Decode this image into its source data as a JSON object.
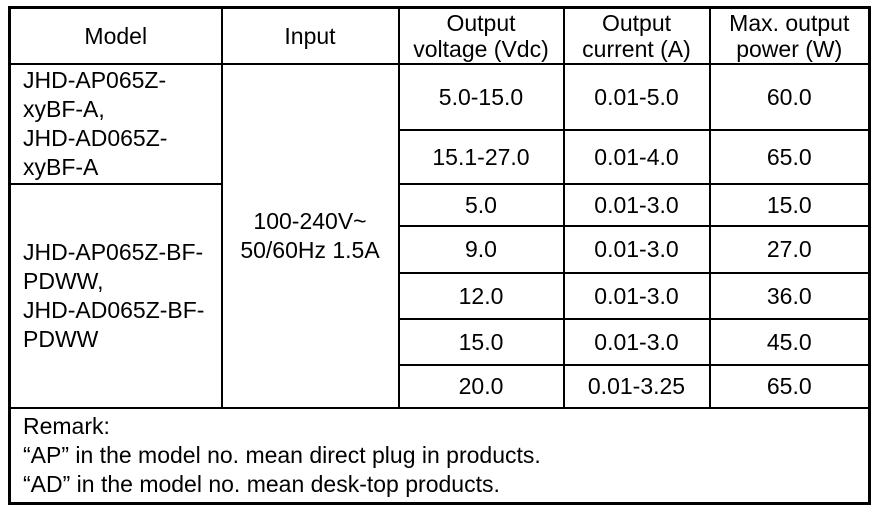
{
  "table": {
    "headers": {
      "model": "Model",
      "input": "Input",
      "output_voltage": {
        "line1": "Output",
        "line2": "voltage (Vdc)"
      },
      "output_current": {
        "line1": "Output",
        "line2": "current (A)"
      },
      "max_power": {
        "line1": "Max. output",
        "line2": "power (W)"
      }
    },
    "input_cell": {
      "line1": "100-240V~",
      "line2": "50/60Hz 1.5A"
    },
    "model_groups": [
      {
        "lines": [
          "JHD-AP065Z-",
          "xyBF-A,",
          "JHD-AD065Z-",
          "xyBF-A"
        ]
      },
      {
        "lines": [
          "JHD-AP065Z-BF-",
          "PDWW,",
          "JHD-AD065Z-BF-",
          "PDWW"
        ]
      }
    ],
    "rows": [
      {
        "voltage": "5.0-15.0",
        "current": "0.01-5.0",
        "power": "60.0"
      },
      {
        "voltage": "15.1-27.0",
        "current": "0.01-4.0",
        "power": "65.0"
      },
      {
        "voltage": "5.0",
        "current": "0.01-3.0",
        "power": "15.0"
      },
      {
        "voltage": "9.0",
        "current": "0.01-3.0",
        "power": "27.0"
      },
      {
        "voltage": "12.0",
        "current": "0.01-3.0",
        "power": "36.0"
      },
      {
        "voltage": "15.0",
        "current": "0.01-3.0",
        "power": "45.0"
      },
      {
        "voltage": "20.0",
        "current": "0.01-3.25",
        "power": "65.0"
      }
    ],
    "remark": {
      "title": "Remark:",
      "lines": [
        "“AP” in the model no. mean direct plug in products.",
        "“AD” in the model no. mean desk-top products."
      ]
    },
    "colors": {
      "border": "#000000",
      "text": "#000000",
      "background": "#ffffff"
    }
  }
}
